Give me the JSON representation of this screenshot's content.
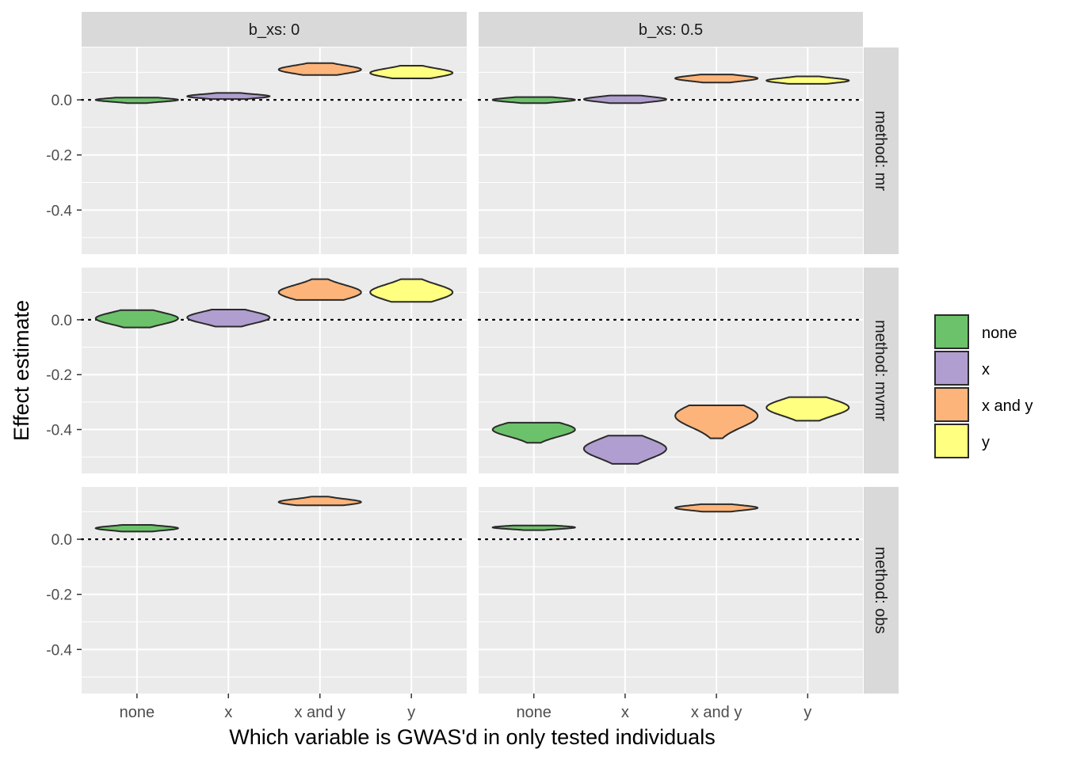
{
  "chart_data": {
    "type": "violin",
    "xlabel": "Which variable is GWAS'd in only tested individuals",
    "ylabel": "Effect estimate",
    "ylim": [
      -0.56,
      0.19
    ],
    "yticks": [
      0.0,
      -0.2,
      -0.4
    ],
    "ytick_labels": [
      "0.0",
      "-0.2",
      "-0.4"
    ],
    "categories": [
      "none",
      "x",
      "x and y",
      "y"
    ],
    "col_facets": [
      "b_xs: 0",
      "b_xs: 0.5"
    ],
    "row_facets": [
      "method: mr",
      "method: mvmr",
      "method: obs"
    ],
    "reference_line": 0.0,
    "grid": true,
    "legend_position": "right",
    "legend": [
      {
        "label": "none",
        "color": "#6cc26a"
      },
      {
        "label": "x",
        "color": "#b09ed0"
      },
      {
        "label": "x and y",
        "color": "#fdb47a"
      },
      {
        "label": "y",
        "color": "#ffff80"
      }
    ],
    "panels": [
      {
        "row": 0,
        "col": 0,
        "violins": [
          {
            "category": "none",
            "min": -0.012,
            "max": 0.008,
            "modes": [
              0.0
            ]
          },
          {
            "category": "x",
            "min": 0.003,
            "max": 0.025,
            "modes": [
              0.013
            ]
          },
          {
            "category": "x and y",
            "min": 0.09,
            "max": 0.133,
            "modes": [
              0.11
            ]
          },
          {
            "category": "y",
            "min": 0.078,
            "max": 0.124,
            "modes": [
              0.098
            ]
          }
        ]
      },
      {
        "row": 0,
        "col": 1,
        "violins": [
          {
            "category": "none",
            "min": -0.012,
            "max": 0.01,
            "modes": [
              0.0
            ]
          },
          {
            "category": "x",
            "min": -0.012,
            "max": 0.016,
            "modes": [
              0.002
            ]
          },
          {
            "category": "x and y",
            "min": 0.063,
            "max": 0.092,
            "modes": [
              0.078
            ]
          },
          {
            "category": "y",
            "min": 0.058,
            "max": 0.085,
            "modes": [
              0.07
            ]
          }
        ]
      },
      {
        "row": 1,
        "col": 0,
        "violins": [
          {
            "category": "none",
            "min": -0.028,
            "max": 0.035,
            "modes": [
              0.005
            ]
          },
          {
            "category": "x",
            "min": -0.025,
            "max": 0.037,
            "modes": [
              0.008
            ]
          },
          {
            "category": "x and y",
            "min": 0.072,
            "max": 0.148,
            "modes": [
              0.1
            ]
          },
          {
            "category": "y",
            "min": 0.065,
            "max": 0.148,
            "modes": [
              0.1
            ]
          }
        ]
      },
      {
        "row": 1,
        "col": 1,
        "violins": [
          {
            "category": "none",
            "min": -0.448,
            "max": -0.375,
            "modes": [
              -0.4
            ]
          },
          {
            "category": "x",
            "min": -0.525,
            "max": -0.422,
            "modes": [
              -0.47
            ]
          },
          {
            "category": "x and y",
            "min": -0.432,
            "max": -0.312,
            "modes": [
              -0.35
            ]
          },
          {
            "category": "y",
            "min": -0.368,
            "max": -0.282,
            "modes": [
              -0.32
            ]
          }
        ]
      },
      {
        "row": 2,
        "col": 0,
        "violins": [
          {
            "category": "none",
            "min": 0.028,
            "max": 0.052,
            "modes": [
              0.04
            ]
          },
          {
            "category": "x and y",
            "min": 0.123,
            "max": 0.155,
            "modes": [
              0.135
            ]
          }
        ]
      },
      {
        "row": 2,
        "col": 1,
        "violins": [
          {
            "category": "none",
            "min": 0.033,
            "max": 0.05,
            "modes": [
              0.043
            ]
          },
          {
            "category": "x and y",
            "min": 0.1,
            "max": 0.127,
            "modes": [
              0.114
            ]
          }
        ]
      }
    ]
  }
}
